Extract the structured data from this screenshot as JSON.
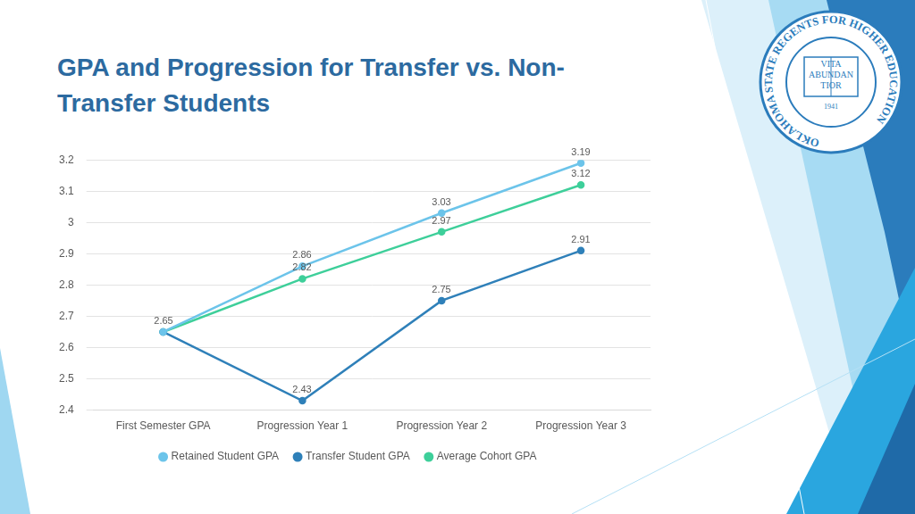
{
  "chart_data": {
    "type": "line",
    "title": "GPA and Progression for Transfer vs. Non-Transfer Students",
    "categories": [
      "First Semester GPA",
      "Progression Year 1",
      "Progression Year 2",
      "Progression Year 3"
    ],
    "series": [
      {
        "name": "Retained Student GPA",
        "color": "#6cc4ea",
        "values": [
          2.65,
          2.86,
          3.03,
          3.19
        ]
      },
      {
        "name": "Transfer Student GPA",
        "color": "#2f80b9",
        "values": [
          2.65,
          2.43,
          2.75,
          2.91
        ]
      },
      {
        "name": "Average Cohort GPA",
        "color": "#3ecf9a",
        "values": [
          2.65,
          2.82,
          2.97,
          3.12
        ]
      }
    ],
    "ylim": [
      2.4,
      3.2
    ],
    "yticks": [
      2.4,
      2.5,
      2.6,
      2.7,
      2.8,
      2.9,
      3,
      3.1,
      3.2
    ],
    "grid": true,
    "legend": "bottom",
    "data_labels": true,
    "marker": "circle",
    "line_style": "solid"
  },
  "logo": {
    "ring_text": "OKLAHOMA STATE REGENTS FOR HIGHER EDUCATION",
    "motto": [
      "VITA",
      "ABUNDAN",
      "TIOR"
    ],
    "year": "1941"
  }
}
